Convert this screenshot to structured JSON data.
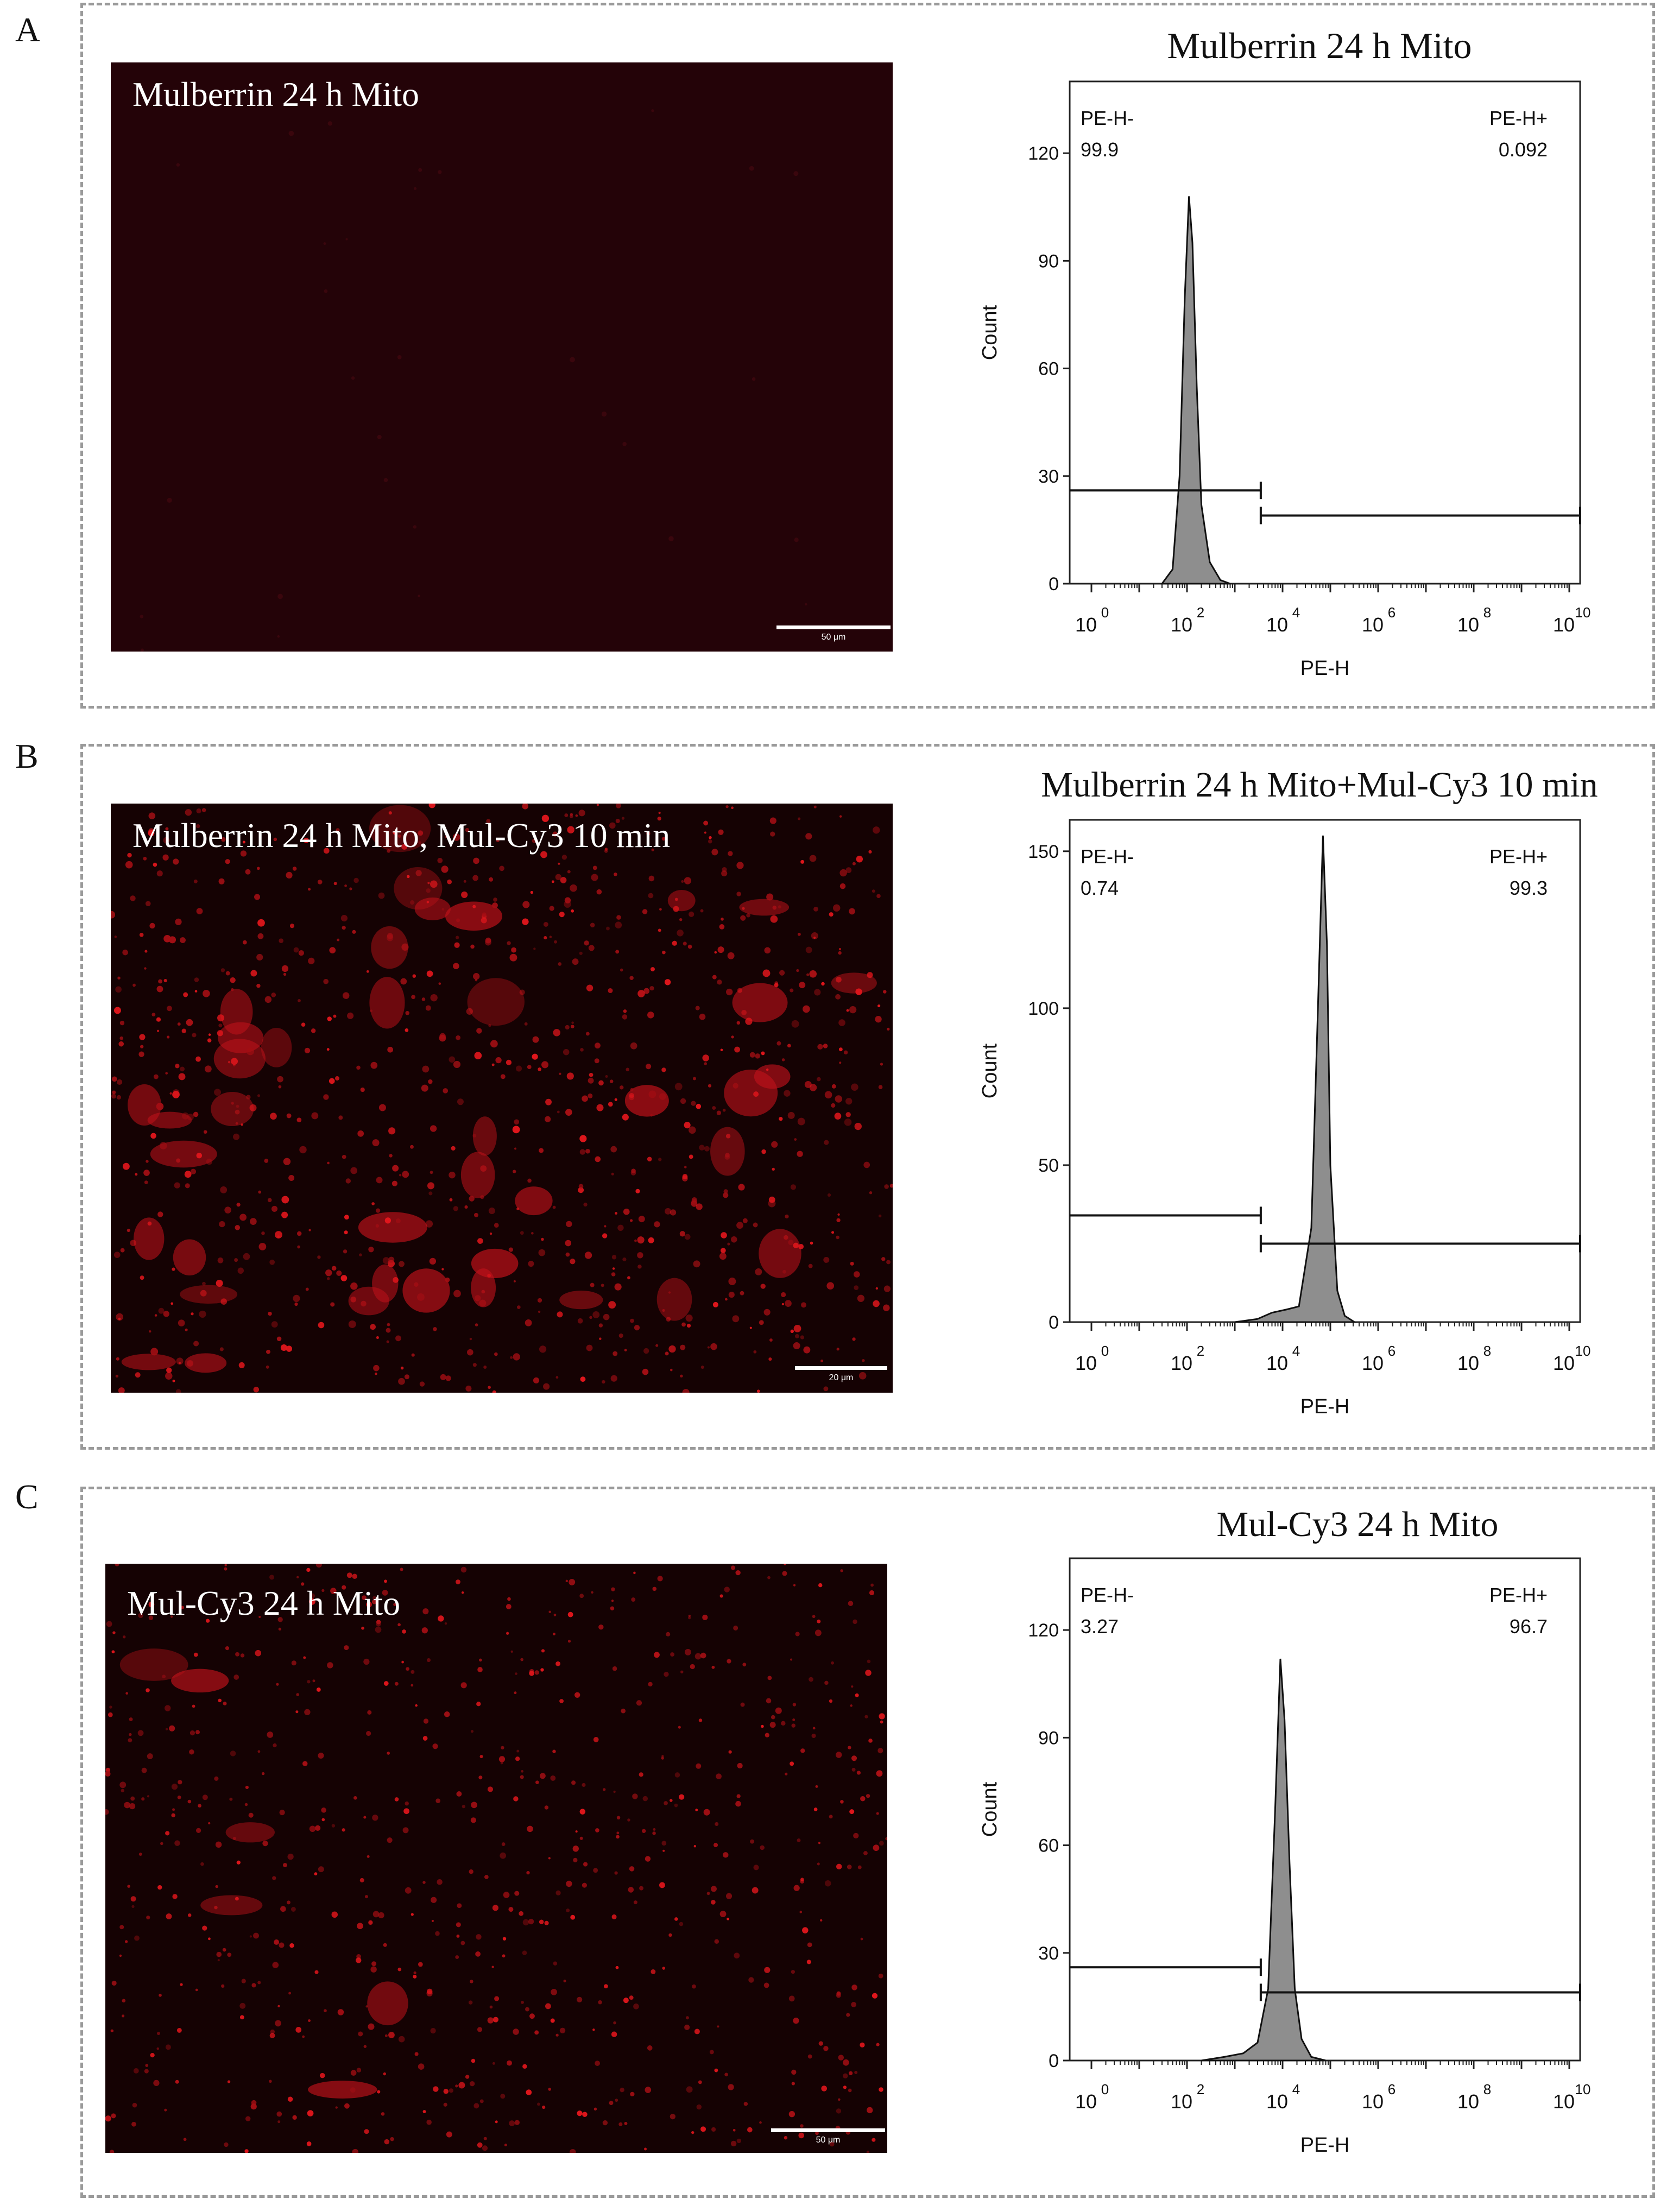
{
  "panels": [
    {
      "letter": "A",
      "micrograph": {
        "label": "Mulberrin 24 h Mito",
        "scale_bar": "50 μm",
        "color": "#2a0408",
        "spot_density": "very-low"
      },
      "chart_data": {
        "type": "area",
        "title": "Mulberrin 24 h Mito",
        "xlabel": "PE-H",
        "ylabel": "Count",
        "x_scale": "log10",
        "xlim": [
          1,
          10000000000
        ],
        "ylim": [
          0,
          140
        ],
        "x_ticks": [
          {
            "base": "10",
            "exp": "0"
          },
          {
            "base": "10",
            "exp": "2"
          },
          {
            "base": "10",
            "exp": "4"
          },
          {
            "base": "10",
            "exp": "6"
          },
          {
            "base": "10",
            "exp": "8"
          },
          {
            "base": "10",
            "exp": "10"
          }
        ],
        "y_ticks": [
          "0",
          "30",
          "60",
          "90",
          "120"
        ],
        "gate_threshold": 3500,
        "gates": [
          {
            "name": "PE-H-",
            "percent": "99.9",
            "level": 26
          },
          {
            "name": "PE-H+",
            "percent": "0.092",
            "level": 19
          }
        ],
        "histogram": {
          "x": [
            30,
            50,
            70,
            90,
            110,
            130,
            160,
            200,
            300,
            500,
            800
          ],
          "y": [
            0,
            4,
            30,
            80,
            108,
            95,
            55,
            22,
            6,
            1,
            0
          ]
        },
        "fill": "#8e8e8e"
      }
    },
    {
      "letter": "B",
      "micrograph": {
        "label": "Mulberrin 24 h Mito, Mul-Cy3 10 min",
        "scale_bar": "20 μm",
        "color": "#e0161c",
        "spot_density": "high"
      },
      "chart_data": {
        "type": "area",
        "title": "Mulberrin 24 h Mito+Mul-Cy3 10 min",
        "xlabel": "PE-H",
        "ylabel": "Count",
        "x_scale": "log10",
        "xlim": [
          1,
          10000000000
        ],
        "ylim": [
          0,
          160
        ],
        "x_ticks": [
          {
            "base": "10",
            "exp": "0"
          },
          {
            "base": "10",
            "exp": "2"
          },
          {
            "base": "10",
            "exp": "4"
          },
          {
            "base": "10",
            "exp": "6"
          },
          {
            "base": "10",
            "exp": "8"
          },
          {
            "base": "10",
            "exp": "10"
          }
        ],
        "y_ticks": [
          "0",
          "50",
          "100",
          "150"
        ],
        "gate_threshold": 3500,
        "gates": [
          {
            "name": "PE-H-",
            "percent": "0.74",
            "level": 34
          },
          {
            "name": "PE-H+",
            "percent": "99.3",
            "level": 25
          }
        ],
        "histogram": {
          "x": [
            1000,
            3000,
            6000,
            12000,
            22000,
            40000,
            55000,
            70000,
            85000,
            100000,
            140000,
            200000,
            320000
          ],
          "y": [
            0,
            1,
            3,
            4,
            5,
            30,
            100,
            155,
            120,
            50,
            10,
            2,
            0
          ]
        },
        "fill": "#8e8e8e"
      }
    },
    {
      "letter": "C",
      "micrograph": {
        "label": "Mul-Cy3 24 h Mito",
        "scale_bar": "50 μm",
        "color": "#e0161c",
        "spot_density": "medium"
      },
      "chart_data": {
        "type": "area",
        "title": "Mul-Cy3 24 h Mito",
        "xlabel": "PE-H",
        "ylabel": "Count",
        "x_scale": "log10",
        "xlim": [
          1,
          10000000000
        ],
        "ylim": [
          0,
          140
        ],
        "x_ticks": [
          {
            "base": "10",
            "exp": "0"
          },
          {
            "base": "10",
            "exp": "2"
          },
          {
            "base": "10",
            "exp": "4"
          },
          {
            "base": "10",
            "exp": "6"
          },
          {
            "base": "10",
            "exp": "8"
          },
          {
            "base": "10",
            "exp": "10"
          }
        ],
        "y_ticks": [
          "0",
          "30",
          "60",
          "90",
          "120"
        ],
        "gate_threshold": 3500,
        "gates": [
          {
            "name": "PE-H-",
            "percent": "3.27",
            "level": 26
          },
          {
            "name": "PE-H+",
            "percent": "96.7",
            "level": 19
          }
        ],
        "histogram": {
          "x": [
            200,
            600,
            1500,
            3000,
            5000,
            7000,
            9000,
            11000,
            14000,
            18000,
            25000,
            40000,
            80000
          ],
          "y": [
            0,
            1,
            2,
            5,
            20,
            70,
            112,
            95,
            55,
            20,
            6,
            1,
            0
          ]
        },
        "fill": "#8e8e8e"
      }
    }
  ]
}
